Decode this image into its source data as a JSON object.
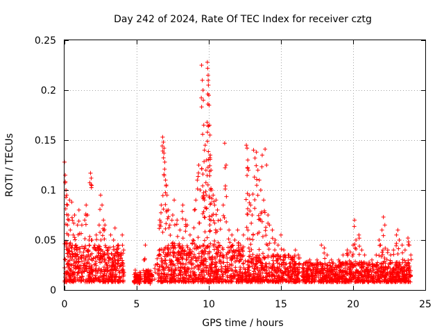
{
  "chart_data": {
    "type": "scatter",
    "title": "Day 242 of 2024, Rate Of TEC Index for receiver cztg",
    "xlabel": "GPS time / hours",
    "ylabel": "ROTI / TECUs",
    "xlim": [
      0,
      25
    ],
    "ylim": [
      0,
      0.25
    ],
    "xticks": [
      "0",
      "5",
      "10",
      "15",
      "20",
      "25"
    ],
    "yticks": [
      "0",
      "0.05",
      "0.1",
      "0.15",
      "0.2",
      "0.25"
    ],
    "grid": true,
    "marker": "+",
    "color": "#ff0000",
    "series": [
      {
        "name": "ROTI",
        "points": [
          [
            0.0,
            0.128
          ],
          [
            0.05,
            0.115
          ],
          [
            0.1,
            0.1
          ],
          [
            0.15,
            0.095
          ],
          [
            0.2,
            0.085
          ],
          [
            0.25,
            0.075
          ],
          [
            0.3,
            0.07
          ],
          [
            0.35,
            0.09
          ],
          [
            0.4,
            0.06
          ],
          [
            0.5,
            0.088
          ],
          [
            0.6,
            0.055
          ],
          [
            0.7,
            0.075
          ],
          [
            0.8,
            0.045
          ],
          [
            0.9,
            0.065
          ],
          [
            1.0,
            0.08
          ],
          [
            1.2,
            0.065
          ],
          [
            1.4,
            0.07
          ],
          [
            1.5,
            0.085
          ],
          [
            1.6,
            0.075
          ],
          [
            1.7,
            0.05
          ],
          [
            1.8,
            0.117
          ],
          [
            1.85,
            0.112
          ],
          [
            1.9,
            0.05
          ],
          [
            2.1,
            0.045
          ],
          [
            2.2,
            0.055
          ],
          [
            2.4,
            0.065
          ],
          [
            2.5,
            0.095
          ],
          [
            2.6,
            0.085
          ],
          [
            2.7,
            0.07
          ],
          [
            2.8,
            0.065
          ],
          [
            3.0,
            0.04
          ],
          [
            3.2,
            0.055
          ],
          [
            3.4,
            0.05
          ],
          [
            3.5,
            0.062
          ],
          [
            3.7,
            0.045
          ],
          [
            3.8,
            0.035
          ],
          [
            4.0,
            0.055
          ],
          [
            4.1,
            0.04
          ],
          [
            4.9,
            0.02
          ],
          [
            5.1,
            0.015
          ],
          [
            5.2,
            0.012
          ],
          [
            5.5,
            0.03
          ],
          [
            5.6,
            0.045
          ],
          [
            5.8,
            0.02
          ],
          [
            6.0,
            0.015
          ],
          [
            6.3,
            0.025
          ],
          [
            6.6,
            0.07
          ],
          [
            6.7,
            0.085
          ],
          [
            6.8,
            0.153
          ],
          [
            6.85,
            0.148
          ],
          [
            6.9,
            0.142
          ],
          [
            6.95,
            0.128
          ],
          [
            7.0,
            0.11
          ],
          [
            7.05,
            0.105
          ],
          [
            7.1,
            0.095
          ],
          [
            7.2,
            0.08
          ],
          [
            7.3,
            0.065
          ],
          [
            7.5,
            0.075
          ],
          [
            7.6,
            0.09
          ],
          [
            7.8,
            0.07
          ],
          [
            8.0,
            0.06
          ],
          [
            8.2,
            0.085
          ],
          [
            8.4,
            0.07
          ],
          [
            8.5,
            0.065
          ],
          [
            8.7,
            0.055
          ],
          [
            8.9,
            0.05
          ],
          [
            9.0,
            0.08
          ],
          [
            9.1,
            0.09
          ],
          [
            9.2,
            0.11
          ],
          [
            9.3,
            0.125
          ],
          [
            9.4,
            0.1
          ],
          [
            9.5,
            0.225
          ],
          [
            9.55,
            0.21
          ],
          [
            9.6,
            0.2
          ],
          [
            9.62,
            0.19
          ],
          [
            9.65,
            0.165
          ],
          [
            9.7,
            0.14
          ],
          [
            9.75,
            0.145
          ],
          [
            9.8,
            0.12
          ],
          [
            9.85,
            0.13
          ],
          [
            9.9,
            0.228
          ],
          [
            9.92,
            0.222
          ],
          [
            9.95,
            0.215
          ],
          [
            9.97,
            0.205
          ],
          [
            10.0,
            0.195
          ],
          [
            10.02,
            0.185
          ],
          [
            10.05,
            0.165
          ],
          [
            10.08,
            0.155
          ],
          [
            10.1,
            0.135
          ],
          [
            10.15,
            0.12
          ],
          [
            10.2,
            0.1
          ],
          [
            10.3,
            0.095
          ],
          [
            10.4,
            0.085
          ],
          [
            10.5,
            0.09
          ],
          [
            10.6,
            0.08
          ],
          [
            10.8,
            0.07
          ],
          [
            11.0,
            0.085
          ],
          [
            11.1,
            0.147
          ],
          [
            11.2,
            0.125
          ],
          [
            11.4,
            0.06
          ],
          [
            11.6,
            0.055
          ],
          [
            11.8,
            0.05
          ],
          [
            12.0,
            0.06
          ],
          [
            12.2,
            0.045
          ],
          [
            12.4,
            0.055
          ],
          [
            12.6,
            0.145
          ],
          [
            12.65,
            0.142
          ],
          [
            12.7,
            0.13
          ],
          [
            12.75,
            0.12
          ],
          [
            12.8,
            0.095
          ],
          [
            12.9,
            0.085
          ],
          [
            13.0,
            0.075
          ],
          [
            13.1,
            0.14
          ],
          [
            13.2,
            0.132
          ],
          [
            13.3,
            0.138
          ],
          [
            13.4,
            0.12
          ],
          [
            13.5,
            0.11
          ],
          [
            13.6,
            0.1
          ],
          [
            13.7,
            0.135
          ],
          [
            13.8,
            0.09
          ],
          [
            13.9,
            0.141
          ],
          [
            14.0,
            0.125
          ],
          [
            14.1,
            0.075
          ],
          [
            14.2,
            0.065
          ],
          [
            14.4,
            0.06
          ],
          [
            14.6,
            0.05
          ],
          [
            14.8,
            0.045
          ],
          [
            15.0,
            0.055
          ],
          [
            15.2,
            0.04
          ],
          [
            15.5,
            0.035
          ],
          [
            15.8,
            0.03
          ],
          [
            16.0,
            0.04
          ],
          [
            16.2,
            0.035
          ],
          [
            16.5,
            0.025
          ],
          [
            16.8,
            0.02
          ],
          [
            17.0,
            0.03
          ],
          [
            17.2,
            0.025
          ],
          [
            17.5,
            0.03
          ],
          [
            17.8,
            0.045
          ],
          [
            18.0,
            0.042
          ],
          [
            18.2,
            0.035
          ],
          [
            18.5,
            0.03
          ],
          [
            18.8,
            0.025
          ],
          [
            19.0,
            0.03
          ],
          [
            19.3,
            0.035
          ],
          [
            19.6,
            0.04
          ],
          [
            19.8,
            0.038
          ],
          [
            20.0,
            0.045
          ],
          [
            20.1,
            0.07
          ],
          [
            20.2,
            0.05
          ],
          [
            20.4,
            0.055
          ],
          [
            20.6,
            0.04
          ],
          [
            20.8,
            0.035
          ],
          [
            21.0,
            0.025
          ],
          [
            21.3,
            0.03
          ],
          [
            21.6,
            0.035
          ],
          [
            21.8,
            0.05
          ],
          [
            21.9,
            0.045
          ],
          [
            22.0,
            0.06
          ],
          [
            22.1,
            0.073
          ],
          [
            22.2,
            0.065
          ],
          [
            22.4,
            0.04
          ],
          [
            22.6,
            0.035
          ],
          [
            22.8,
            0.04
          ],
          [
            23.0,
            0.055
          ],
          [
            23.1,
            0.06
          ],
          [
            23.2,
            0.05
          ],
          [
            23.4,
            0.045
          ],
          [
            23.6,
            0.04
          ],
          [
            23.8,
            0.052
          ],
          [
            23.9,
            0.045
          ],
          [
            24.0,
            0.035
          ]
        ],
        "dense_bands": [
          {
            "x_from": 0.0,
            "x_to": 4.1,
            "y_min": 0.008,
            "y_max": 0.045
          },
          {
            "x_from": 4.8,
            "x_to": 5.3,
            "y_min": 0.008,
            "y_max": 0.018
          },
          {
            "x_from": 5.5,
            "x_to": 6.1,
            "y_min": 0.008,
            "y_max": 0.02
          },
          {
            "x_from": 6.4,
            "x_to": 12.5,
            "y_min": 0.008,
            "y_max": 0.045
          },
          {
            "x_from": 12.5,
            "x_to": 16.3,
            "y_min": 0.008,
            "y_max": 0.035
          },
          {
            "x_from": 16.5,
            "x_to": 24.0,
            "y_min": 0.008,
            "y_max": 0.028
          }
        ]
      }
    ]
  }
}
